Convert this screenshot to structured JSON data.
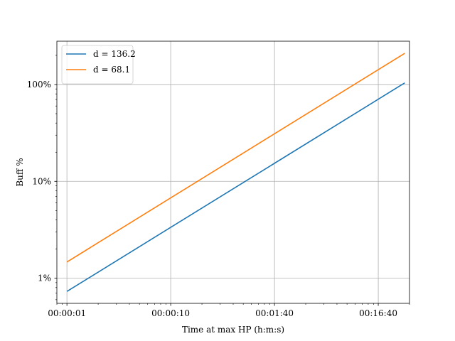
{
  "chart_data": {
    "type": "line",
    "title": "",
    "xlabel": "Time at max HP (h:m:s)",
    "ylabel": "Buff %",
    "x_scale": "log",
    "y_scale": "log",
    "grid": true,
    "legend_position": "top-left",
    "xlim_seconds": [
      0.8,
      2000
    ],
    "ylim_percent": [
      0.55,
      280
    ],
    "x_ticks": [
      {
        "value": 1,
        "label": "00:00:01"
      },
      {
        "value": 10,
        "label": "00:00:10"
      },
      {
        "value": 100,
        "label": "00:01:40"
      },
      {
        "value": 1000,
        "label": "00:16:40"
      }
    ],
    "y_ticks": [
      {
        "value": 1,
        "label": "1%"
      },
      {
        "value": 10,
        "label": "10%"
      },
      {
        "value": 100,
        "label": "100%"
      }
    ],
    "series": [
      {
        "name": "d = 136.2",
        "color": "#1f77b4",
        "x": [
          1,
          1800
        ],
        "y": [
          0.73,
          104
        ]
      },
      {
        "name": "d = 68.1",
        "color": "#ff7f0e",
        "x": [
          1,
          1800
        ],
        "y": [
          1.47,
          210
        ]
      }
    ]
  }
}
